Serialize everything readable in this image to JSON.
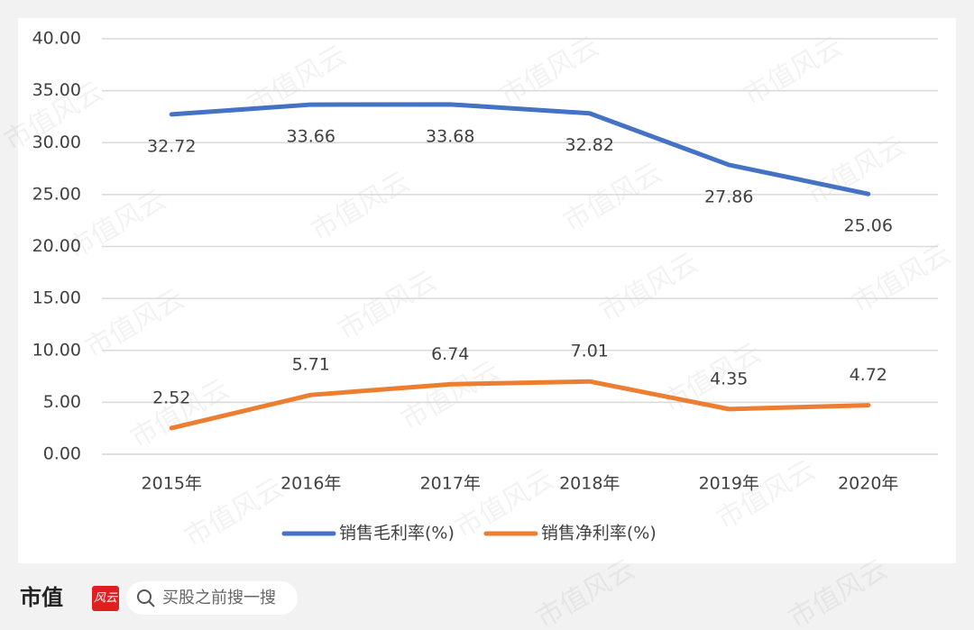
{
  "chart_data": {
    "type": "line",
    "categories": [
      "2015年",
      "2016年",
      "2017年",
      "2018年",
      "2019年",
      "2020年"
    ],
    "series": [
      {
        "name": "销售毛利率(%)",
        "color": "#4472c4",
        "values": [
          32.72,
          33.66,
          33.68,
          32.82,
          27.86,
          25.06
        ],
        "label_position": "below"
      },
      {
        "name": "销售净利率(%)",
        "color": "#ed7d31",
        "values": [
          2.52,
          5.71,
          6.74,
          7.01,
          4.35,
          4.72
        ],
        "label_position": "above"
      }
    ],
    "ylim": [
      0,
      40
    ],
    "yticks": [
      {
        "value": 0,
        "label": "0.00"
      },
      {
        "value": 5,
        "label": "5.00"
      },
      {
        "value": 10,
        "label": "10.00"
      },
      {
        "value": 15,
        "label": "15.00"
      },
      {
        "value": 20,
        "label": "20.00"
      },
      {
        "value": 25,
        "label": "25.00"
      },
      {
        "value": 30,
        "label": "30.00"
      },
      {
        "value": 35,
        "label": "35.00"
      },
      {
        "value": 40,
        "label": "40.00"
      }
    ],
    "grid": true,
    "data_labels": true,
    "legend": "bottom"
  },
  "watermark": "市值风云",
  "footer": {
    "brand": "市值",
    "logo": "风云",
    "search": "买股之前搜一搜"
  }
}
